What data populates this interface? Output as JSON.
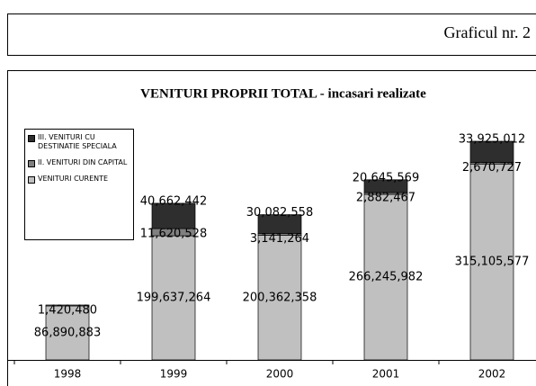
{
  "header": {
    "title": "Graficul nr. 2"
  },
  "chart_data": {
    "type": "stacked-bar",
    "title": "VENITURI PROPRII TOTAL - incasari realizate",
    "categories": [
      "1998",
      "1999",
      "2000",
      "2001",
      "2002"
    ],
    "series": [
      {
        "name": "VENITURI CURENTE",
        "color": "#c0c0c0",
        "values": [
          86890883,
          199637264,
          200362358,
          266245982,
          315105577
        ],
        "value_labels": [
          "86,890,883",
          "199,637,264",
          "200,362,358",
          "266,245,982",
          "315,105,577"
        ]
      },
      {
        "name": "II. VENITURI DIN CAPITAL",
        "color": "#808080",
        "values": [
          1420480,
          11620528,
          3141264,
          2882467,
          2670727
        ],
        "value_labels": [
          "1,420,480",
          "11,620,528",
          "3,141,264",
          "2,882,467",
          "2,670,727"
        ]
      },
      {
        "name": "III. VENITURI CU DESTINATIE SPECIALA",
        "color": "#2e2e2e",
        "values": [
          null,
          40662442,
          30082558,
          20645569,
          33925012
        ],
        "value_labels": [
          null,
          "40,662,442",
          "30,082,558",
          "20,645,569",
          "33,925,012"
        ]
      }
    ],
    "legend": "upper left"
  }
}
